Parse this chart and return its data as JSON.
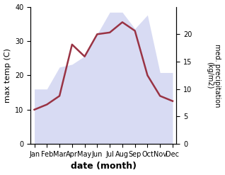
{
  "months": [
    "Jan",
    "Feb",
    "Mar",
    "Apr",
    "May",
    "Jun",
    "Jul",
    "Aug",
    "Sep",
    "Oct",
    "Nov",
    "Dec"
  ],
  "month_indices": [
    0,
    1,
    2,
    3,
    4,
    5,
    6,
    7,
    8,
    9,
    10,
    11
  ],
  "max_temp": [
    10.0,
    11.5,
    14.0,
    29.0,
    25.5,
    32.0,
    32.5,
    35.5,
    33.0,
    20.0,
    14.0,
    12.5
  ],
  "precipitation": [
    10.0,
    10.0,
    14.0,
    14.5,
    16.0,
    20.0,
    24.0,
    24.0,
    21.0,
    23.5,
    13.0,
    13.0
  ],
  "temp_color": "#993344",
  "precip_fill_color": "#b3b9e8",
  "temp_ylim": [
    0,
    40
  ],
  "precip_ylim": [
    0,
    25
  ],
  "precip_yticks": [
    0,
    5,
    10,
    15,
    20
  ],
  "temp_yticks": [
    0,
    10,
    20,
    30,
    40
  ],
  "xlabel": "date (month)",
  "ylabel_left": "max temp (C)",
  "ylabel_right": "med. precipitation\n(kg/m2)",
  "fill_alpha": 0.5,
  "temp_linewidth": 1.8
}
